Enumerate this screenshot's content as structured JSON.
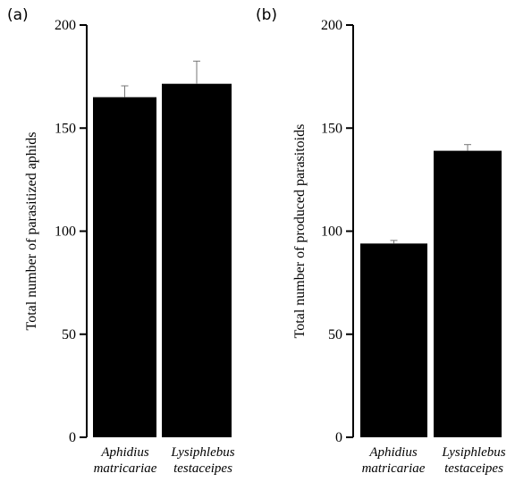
{
  "chart_data": [
    {
      "type": "bar",
      "panel_label": "(a)",
      "categories": [
        [
          "Aphidius",
          "matricariae"
        ],
        [
          "Lysiphlebus",
          "testaceipes"
        ]
      ],
      "values": [
        165,
        171.5
      ],
      "error": [
        5.5,
        11
      ],
      "ylabel": "Total number of parasitized aphids",
      "ylim": [
        0,
        200
      ],
      "yticks": [
        0,
        50,
        100,
        150,
        200
      ],
      "bar_color": "#000000"
    },
    {
      "type": "bar",
      "panel_label": "(b)",
      "categories": [
        [
          "Aphidius",
          "matricariae"
        ],
        [
          "Lysiphlebus",
          "testaceipes"
        ]
      ],
      "values": [
        94,
        139
      ],
      "error": [
        1.5,
        3
      ],
      "ylabel": "Total number of produced parasitoids",
      "ylim": [
        0,
        200
      ],
      "yticks": [
        0,
        50,
        100,
        150,
        200
      ],
      "bar_color": "#000000"
    }
  ]
}
